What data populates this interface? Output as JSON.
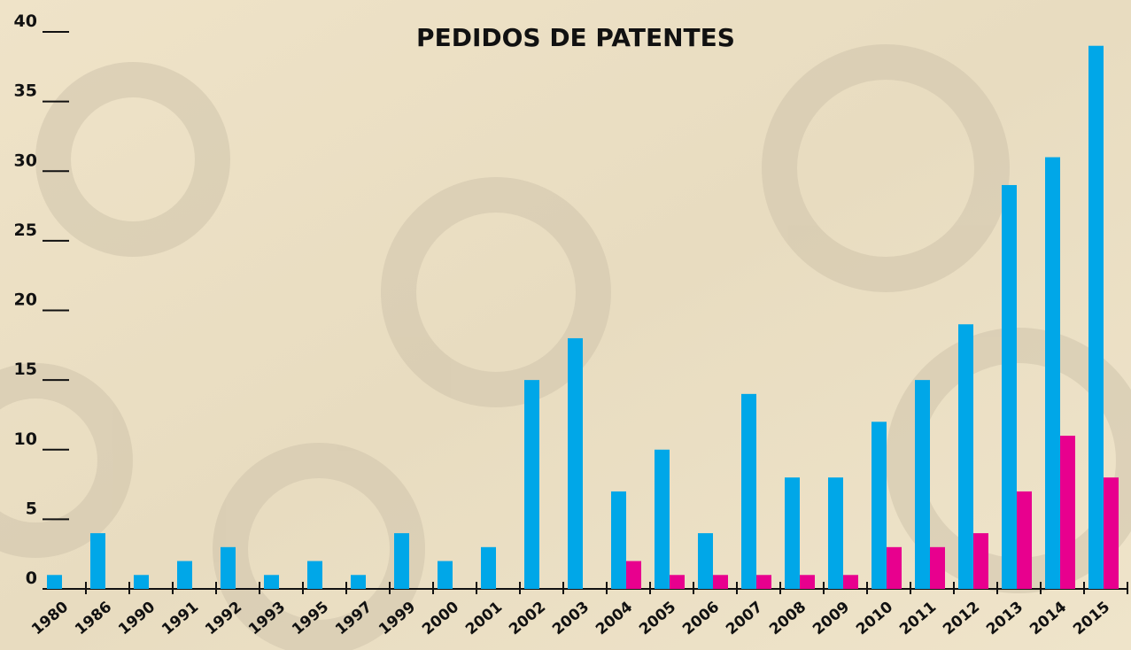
{
  "chart_data": {
    "type": "bar",
    "title": "PEDIDOS DE PATENTES",
    "categories": [
      "1980",
      "1986",
      "1990",
      "1991",
      "1992",
      "1993",
      "1995",
      "1997",
      "1999",
      "2000",
      "2001",
      "2002",
      "2003",
      "2004",
      "2005",
      "2006",
      "2007",
      "2008",
      "2009",
      "2010",
      "2011",
      "2012",
      "2013",
      "2014",
      "2015"
    ],
    "series": [
      {
        "color": "#00a7e8",
        "values": [
          1,
          4,
          1,
          2,
          3,
          1,
          2,
          1,
          4,
          2,
          3,
          15,
          18,
          7,
          10,
          4,
          14,
          8,
          8,
          12,
          15,
          19,
          29,
          31,
          39
        ]
      },
      {
        "color": "#e8008e",
        "values": [
          0,
          0,
          0,
          0,
          0,
          0,
          0,
          0,
          0,
          0,
          0,
          0,
          0,
          2,
          1,
          1,
          1,
          1,
          1,
          3,
          3,
          4,
          7,
          11,
          8
        ]
      }
    ],
    "ylim": [
      0,
      40
    ],
    "yticks": [
      0,
      5,
      10,
      15,
      20,
      25,
      30,
      35,
      40
    ]
  }
}
